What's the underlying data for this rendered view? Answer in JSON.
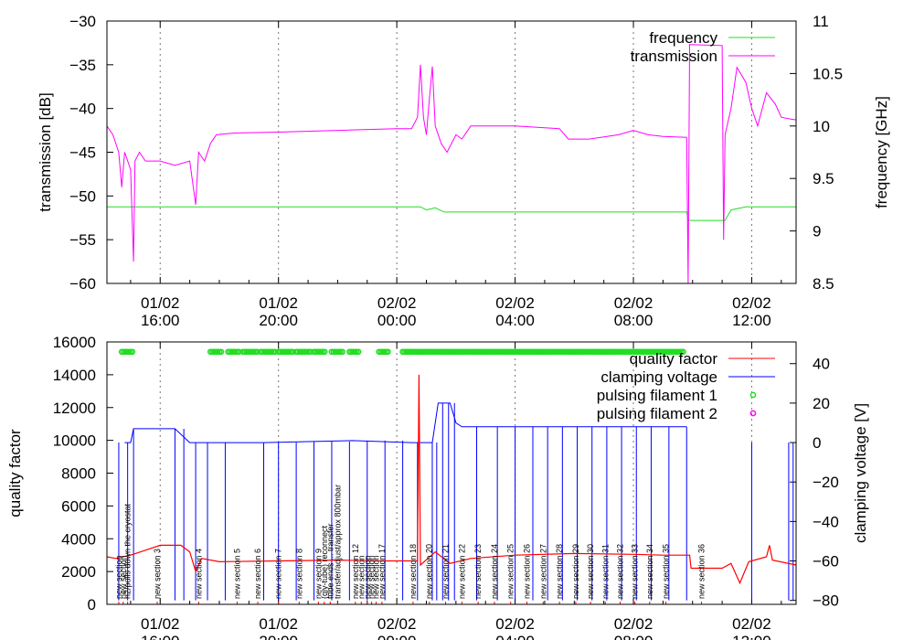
{
  "chart_data": [
    {
      "type": "line",
      "ylabel": "transmission [dB]",
      "y2label": "frequency [GHz]",
      "ylim": [
        -60,
        -30
      ],
      "y2lim": [
        8.5,
        11
      ],
      "yticks": [
        "-30",
        "-35",
        "-40",
        "-45",
        "-50",
        "-55",
        "-60"
      ],
      "y2ticks": [
        "11",
        "10.5",
        "10",
        "9.5",
        "9",
        "8.5"
      ],
      "xticks": [
        {
          "date": "01/02",
          "time": "16:00"
        },
        {
          "date": "01/02",
          "time": "20:00"
        },
        {
          "date": "02/02",
          "time": "00:00"
        },
        {
          "date": "02/02",
          "time": "04:00"
        },
        {
          "date": "02/02",
          "time": "08:00"
        },
        {
          "date": "02/02",
          "time": "12:00"
        }
      ],
      "xlim_hours": [
        14.2,
        37.5
      ],
      "grid": "vertical dashed at x ticks",
      "legend_position": "top-right",
      "series": [
        {
          "name": "frequency",
          "color": "#22dd22",
          "axis": "right",
          "points": [
            [
              14.2,
              9.23
            ],
            [
              24.8,
              9.23
            ],
            [
              25.0,
              9.2
            ],
            [
              25.3,
              9.22
            ],
            [
              25.6,
              9.18
            ],
            [
              26.0,
              9.18
            ],
            [
              33.8,
              9.18
            ],
            [
              33.85,
              9.1
            ],
            [
              35.1,
              9.1
            ],
            [
              35.3,
              9.2
            ],
            [
              35.8,
              9.23
            ],
            [
              37.5,
              9.23
            ]
          ]
        },
        {
          "name": "transmission",
          "color": "#ff00ff",
          "axis": "left",
          "points": [
            [
              14.2,
              -42
            ],
            [
              14.4,
              -43
            ],
            [
              14.6,
              -45
            ],
            [
              14.7,
              -49
            ],
            [
              14.8,
              -45
            ],
            [
              14.9,
              -46
            ],
            [
              15.0,
              -47
            ],
            [
              15.1,
              -57.5
            ],
            [
              15.15,
              -46
            ],
            [
              15.3,
              -45
            ],
            [
              15.5,
              -46
            ],
            [
              16.0,
              -46
            ],
            [
              16.5,
              -46.5
            ],
            [
              17.0,
              -46
            ],
            [
              17.2,
              -51
            ],
            [
              17.3,
              -45
            ],
            [
              17.5,
              -46
            ],
            [
              17.7,
              -44
            ],
            [
              17.9,
              -43
            ],
            [
              18.5,
              -42.8
            ],
            [
              20.0,
              -42.7
            ],
            [
              22.0,
              -42.5
            ],
            [
              24.0,
              -42.3
            ],
            [
              24.5,
              -42.3
            ],
            [
              24.7,
              -41
            ],
            [
              24.8,
              -35
            ],
            [
              24.9,
              -41
            ],
            [
              25.0,
              -43
            ],
            [
              25.1,
              -39
            ],
            [
              25.2,
              -35.2
            ],
            [
              25.3,
              -42
            ],
            [
              25.5,
              -44
            ],
            [
              25.7,
              -45
            ],
            [
              26.0,
              -43
            ],
            [
              26.2,
              -43.5
            ],
            [
              26.5,
              -42
            ],
            [
              28.0,
              -42
            ],
            [
              29.5,
              -42.3
            ],
            [
              29.8,
              -43.5
            ],
            [
              30.5,
              -43.5
            ],
            [
              31.5,
              -43
            ],
            [
              32.0,
              -42.5
            ],
            [
              32.5,
              -43
            ],
            [
              33.0,
              -43.2
            ],
            [
              33.8,
              -43.3
            ],
            [
              33.85,
              -60
            ],
            [
              33.9,
              -32.7
            ],
            [
              35.0,
              -32.8
            ],
            [
              35.05,
              -55
            ],
            [
              35.1,
              -43
            ],
            [
              35.3,
              -40
            ],
            [
              35.5,
              -35.3
            ],
            [
              35.8,
              -37
            ],
            [
              36.0,
              -40
            ],
            [
              36.2,
              -42
            ],
            [
              36.5,
              -38.2
            ],
            [
              36.8,
              -39.5
            ],
            [
              37.0,
              -41
            ],
            [
              37.3,
              -41.2
            ],
            [
              37.5,
              -41.3
            ]
          ]
        }
      ]
    },
    {
      "type": "line",
      "ylabel": "quality factor",
      "y2label": "clamping voltage [V]",
      "ylim": [
        0,
        16000
      ],
      "y2lim": [
        -82,
        51
      ],
      "yticks": [
        "16000",
        "14000",
        "12000",
        "10000",
        "8000",
        "6000",
        "4000",
        "2000",
        "0"
      ],
      "y2ticks": [
        "40",
        "20",
        "0",
        "-20",
        "-40",
        "-60",
        "-80"
      ],
      "xticks": [
        {
          "date": "01/02",
          "time": "16:00"
        },
        {
          "date": "01/02",
          "time": "20:00"
        },
        {
          "date": "02/02",
          "time": "00:00"
        },
        {
          "date": "02/02",
          "time": "04:00"
        },
        {
          "date": "02/02",
          "time": "08:00"
        },
        {
          "date": "02/02",
          "time": "12:00"
        }
      ],
      "xlim_hours": [
        14.2,
        37.5
      ],
      "legend_position": "top-right",
      "series": [
        {
          "name": "quality factor",
          "color": "#ff0000",
          "axis": "left",
          "points": [
            [
              14.2,
              2900
            ],
            [
              14.5,
              2800
            ],
            [
              15.0,
              3000
            ],
            [
              15.5,
              3300
            ],
            [
              16.0,
              3600
            ],
            [
              16.7,
              3600
            ],
            [
              17.0,
              3200
            ],
            [
              17.2,
              2000
            ],
            [
              17.4,
              2800
            ],
            [
              18.0,
              2600
            ],
            [
              20.0,
              2650
            ],
            [
              22.0,
              2700
            ],
            [
              23.5,
              2650
            ],
            [
              24.7,
              2650
            ],
            [
              24.75,
              14000
            ],
            [
              24.8,
              2400
            ],
            [
              25.3,
              3200
            ],
            [
              25.8,
              2500
            ],
            [
              26.5,
              2800
            ],
            [
              28.0,
              3000
            ],
            [
              30.0,
              3100
            ],
            [
              32.0,
              3050
            ],
            [
              33.0,
              3000
            ],
            [
              33.9,
              3000
            ],
            [
              33.95,
              2200
            ],
            [
              35.0,
              2200
            ],
            [
              35.3,
              2500
            ],
            [
              35.6,
              1300
            ],
            [
              35.9,
              2600
            ],
            [
              36.5,
              2900
            ],
            [
              36.6,
              3600
            ],
            [
              36.7,
              2700
            ],
            [
              37.5,
              2400
            ]
          ]
        },
        {
          "name": "clamping voltage",
          "color": "#0000ff",
          "axis": "right",
          "base_levels": [
            [
              14.8,
              0
            ],
            [
              15.0,
              0
            ],
            [
              15.1,
              7
            ],
            [
              16.5,
              7
            ],
            [
              17.0,
              0
            ],
            [
              19.5,
              0
            ],
            [
              21.0,
              0.5
            ],
            [
              22.5,
              1
            ],
            [
              24.5,
              0
            ],
            [
              25.2,
              0
            ],
            [
              25.4,
              20
            ],
            [
              25.8,
              20
            ],
            [
              26.0,
              10
            ],
            [
              26.2,
              8
            ],
            [
              33.8,
              8
            ]
          ],
          "spikes_to_minus80": [
            14.6,
            14.9,
            15.1,
            16.5,
            16.8,
            17.2,
            17.6,
            18.2,
            19.5,
            20.0,
            20.6,
            21.2,
            21.8,
            22.4,
            23.0,
            23.6,
            24.2,
            24.7,
            25.2,
            25.35,
            25.55,
            25.75,
            25.95,
            26.7,
            27.4,
            28.0,
            28.6,
            29.1,
            29.6,
            30.1,
            30.6,
            31.1,
            31.6,
            32.1,
            32.6,
            33.2,
            33.8,
            36.0,
            37.25,
            37.4
          ]
        },
        {
          "name": "pulsing filament 1",
          "color": "#22dd22",
          "axis": "right",
          "marker": "circle",
          "ranges": [
            [
              14.7,
              15.1
            ],
            [
              17.7,
              18.1
            ],
            [
              18.3,
              18.7
            ],
            [
              18.8,
              19.3
            ],
            [
              19.4,
              19.9
            ],
            [
              20.0,
              20.5
            ],
            [
              20.6,
              21.1
            ],
            [
              21.2,
              21.6
            ],
            [
              21.8,
              22.2
            ],
            [
              22.4,
              22.7
            ],
            [
              23.4,
              23.7
            ],
            [
              24.2,
              33.7
            ]
          ],
          "y": 46
        },
        {
          "name": "pulsing filament 2",
          "color": "#ff00ff",
          "axis": "right",
          "marker": "circle"
        }
      ],
      "annotations": [
        {
          "hour": 14.6,
          "text": "new section"
        },
        {
          "hour": 14.75,
          "text": "new section"
        },
        {
          "hour": 14.9,
          "text": "h2/pulls down the cryostat"
        },
        {
          "hour": 15.9,
          "text": "new section 3"
        },
        {
          "hour": 17.3,
          "text": "new section 4"
        },
        {
          "hour": 18.6,
          "text": "new section 5"
        },
        {
          "hour": 19.3,
          "text": "new section 6"
        },
        {
          "hour": 20.0,
          "text": "new section 7"
        },
        {
          "hour": 20.7,
          "text": "new section 8"
        },
        {
          "hour": 21.35,
          "text": "new section 9"
        },
        {
          "hour": 21.55,
          "text": "(gly-tube) reconnect"
        },
        {
          "hour": 21.75,
          "text": "tube ends ... transfer"
        },
        {
          "hour": 22.0,
          "text": "transfer/adjust/approx 800mbar"
        },
        {
          "hour": 22.6,
          "text": "new section 12"
        },
        {
          "hour": 22.8,
          "text": "new section"
        },
        {
          "hour": 23.0,
          "text": "new section"
        },
        {
          "hour": 23.15,
          "text": "new section"
        },
        {
          "hour": 23.3,
          "text": "new section"
        },
        {
          "hour": 23.5,
          "text": "new section 17"
        },
        {
          "hour": 24.55,
          "text": "new section 18"
        },
        {
          "hour": 25.1,
          "text": "new section 20"
        },
        {
          "hour": 25.65,
          "text": "new section 21"
        },
        {
          "hour": 26.2,
          "text": "new section 22"
        },
        {
          "hour": 26.75,
          "text": "new section 23"
        },
        {
          "hour": 27.3,
          "text": "new section 24"
        },
        {
          "hour": 27.85,
          "text": "new section 25"
        },
        {
          "hour": 28.4,
          "text": "new section 26"
        },
        {
          "hour": 28.95,
          "text": "new section 27"
        },
        {
          "hour": 29.5,
          "text": "new section 28"
        },
        {
          "hour": 30.05,
          "text": "new section 29"
        },
        {
          "hour": 30.55,
          "text": "new section 30"
        },
        {
          "hour": 31.05,
          "text": "new section 31"
        },
        {
          "hour": 31.55,
          "text": "new section 32"
        },
        {
          "hour": 32.05,
          "text": "new section 33"
        },
        {
          "hour": 32.55,
          "text": "new section 34"
        },
        {
          "hour": 33.1,
          "text": "new section 35"
        },
        {
          "hour": 34.3,
          "text": "new section 36"
        }
      ]
    }
  ]
}
